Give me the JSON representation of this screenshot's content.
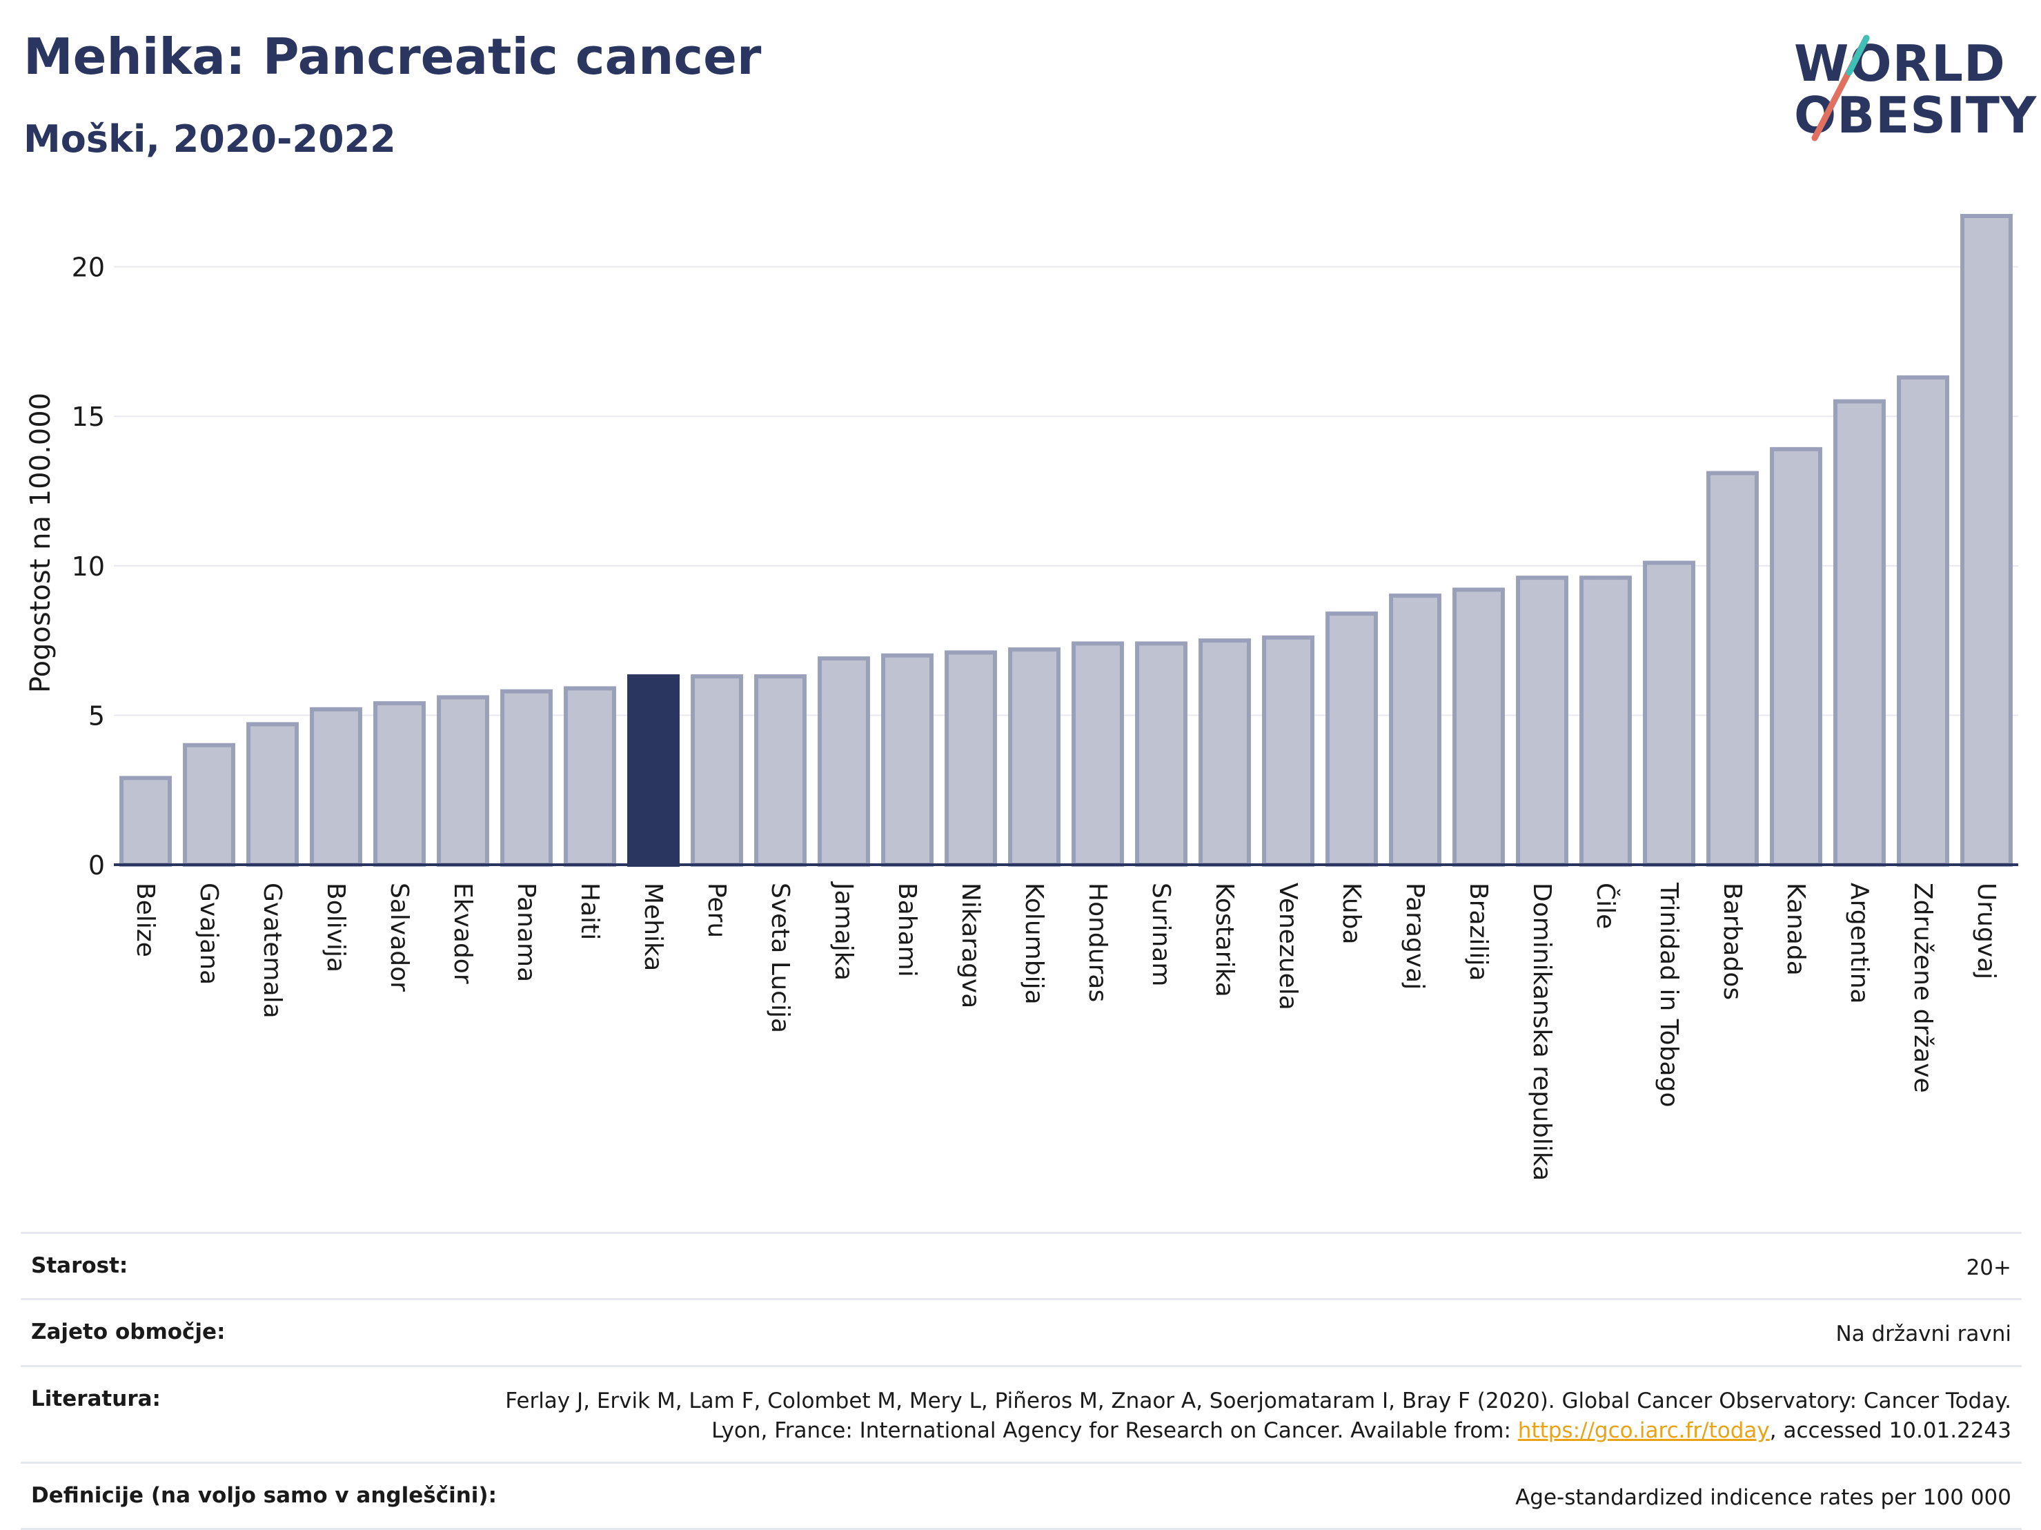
{
  "title": "Mehika: Pancreatic cancer",
  "subtitle": "Moški, 2020-2022",
  "logo": {
    "line1": "WORLD",
    "line2": "OBESITY"
  },
  "colors": {
    "bar": "#bfc3d1",
    "bar_border": "#9aa0b9",
    "highlight": "#2a3560",
    "grid": "#e8e9ef",
    "axis": "#2a3560"
  },
  "chart_data": {
    "type": "bar",
    "ylabel": "Pogostost na 100.000",
    "ylim": [
      0,
      22
    ],
    "yticks": [
      0,
      5,
      10,
      15,
      20
    ],
    "highlight": "Mehika",
    "categories": [
      "Belize",
      "Gvajana",
      "Gvatemala",
      "Bolivija",
      "Salvador",
      "Ekvador",
      "Panama",
      "Haiti",
      "Mehika",
      "Peru",
      "Sveta Lucija",
      "Jamajka",
      "Bahami",
      "Nikaragva",
      "Kolumbija",
      "Honduras",
      "Surinam",
      "Kostarika",
      "Venezuela",
      "Kuba",
      "Paragvaj",
      "Brazilija",
      "Dominikanska republika",
      "Čile",
      "Trinidad in Tobago",
      "Barbados",
      "Kanada",
      "Argentina",
      "Združene države",
      "Urugvaj"
    ],
    "values": [
      2.9,
      4.0,
      4.7,
      5.2,
      5.4,
      5.6,
      5.8,
      5.9,
      6.3,
      6.3,
      6.3,
      6.9,
      7.0,
      7.1,
      7.2,
      7.4,
      7.4,
      7.5,
      7.6,
      8.4,
      9.0,
      9.2,
      9.6,
      9.6,
      10.1,
      13.1,
      13.9,
      15.5,
      16.3,
      21.7
    ]
  },
  "info": {
    "age": {
      "label": "Starost:",
      "value": "20+"
    },
    "coverage": {
      "label": "Zajeto območje:",
      "value": "Na državni ravni"
    },
    "literature": {
      "label": "Literatura:",
      "text_before": "Ferlay J, Ervik M, Lam F, Colombet M, Mery L, Piñeros M, Znaor A, Soerjomataram I, Bray F (2020). Global Cancer Observatory: Cancer Today. Lyon, France: International Agency for Research on Cancer. Available from: ",
      "link": "https://gco.iarc.fr/today",
      "text_after": ", accessed 10.01.2243"
    },
    "definitions": {
      "label": "Definicije (na voljo samo v angleščini):",
      "value": "Age-standardized indicence rates per 100 000"
    }
  }
}
